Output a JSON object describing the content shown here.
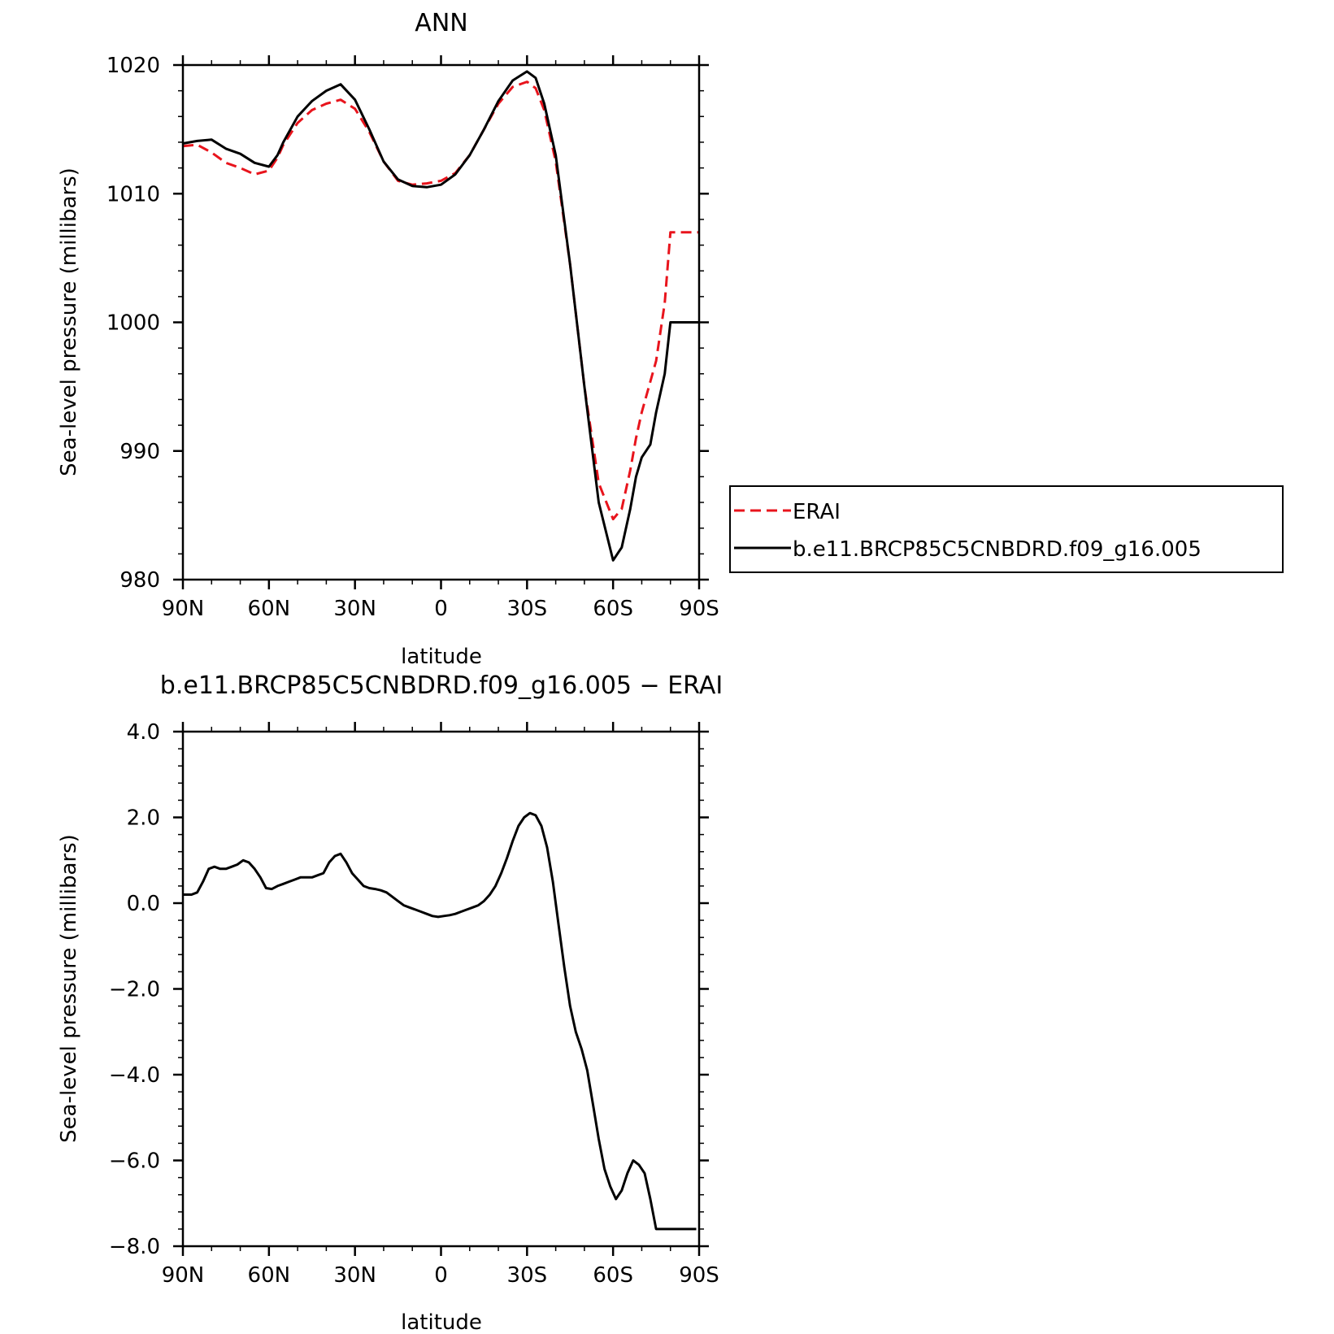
{
  "chart_data": [
    {
      "type": "line",
      "title": "ANN",
      "xlabel": "latitude",
      "ylabel": "Sea-level pressure (millibars)",
      "xlim": [
        90,
        -90
      ],
      "ylim": [
        980,
        1020
      ],
      "x_ticks": [
        {
          "value": 90,
          "label": "90N"
        },
        {
          "value": 60,
          "label": "60N"
        },
        {
          "value": 30,
          "label": "30N"
        },
        {
          "value": 0,
          "label": "0"
        },
        {
          "value": -30,
          "label": "30S"
        },
        {
          "value": -60,
          "label": "60S"
        },
        {
          "value": -90,
          "label": "90S"
        }
      ],
      "y_ticks": [
        {
          "value": 1020,
          "label": "1020"
        },
        {
          "value": 1010,
          "label": "1010"
        },
        {
          "value": 1000,
          "label": "1000"
        },
        {
          "value": 990,
          "label": "990"
        },
        {
          "value": 980,
          "label": "980"
        }
      ],
      "legend": "right",
      "series": [
        {
          "name": "ERAI",
          "color": "#e8141c",
          "dash": "dashed",
          "x": [
            90,
            85,
            80,
            75,
            70,
            65,
            60,
            57,
            55,
            50,
            45,
            40,
            35,
            30,
            25,
            20,
            15,
            10,
            5,
            0,
            -5,
            -10,
            -15,
            -20,
            -25,
            -30,
            -33,
            -36,
            -40,
            -45,
            -50,
            -55,
            -60,
            -63,
            -66,
            -68,
            -70,
            -75,
            -78,
            -80,
            -85,
            -90
          ],
          "y": [
            1013.7,
            1013.8,
            1013.2,
            1012.4,
            1012.0,
            1011.5,
            1011.8,
            1012.8,
            1013.8,
            1015.5,
            1016.5,
            1017.0,
            1017.3,
            1016.6,
            1014.8,
            1012.5,
            1011.0,
            1010.7,
            1010.8,
            1011.0,
            1011.6,
            1013.0,
            1015.0,
            1017.0,
            1018.3,
            1018.7,
            1018.2,
            1016.5,
            1012.5,
            1004.5,
            995.0,
            987.5,
            984.7,
            985.5,
            988.5,
            991.0,
            993.0,
            997.0,
            1001.5,
            1007.0,
            1007.0,
            1007.0
          ]
        },
        {
          "name": "b.e11.BRCP85C5CNBDRD.f09_g16.005",
          "color": "#000000",
          "dash": "solid",
          "x": [
            90,
            85,
            80,
            75,
            70,
            65,
            60,
            57,
            55,
            50,
            45,
            40,
            35,
            30,
            25,
            20,
            15,
            10,
            5,
            0,
            -5,
            -10,
            -15,
            -20,
            -25,
            -30,
            -33,
            -36,
            -40,
            -45,
            -50,
            -55,
            -60,
            -63,
            -66,
            -68,
            -70,
            -73,
            -75,
            -78,
            -80,
            -85,
            -90
          ],
          "y": [
            1013.9,
            1014.1,
            1014.2,
            1013.5,
            1013.1,
            1012.4,
            1012.1,
            1013.0,
            1014.0,
            1016.0,
            1017.2,
            1018.0,
            1018.5,
            1017.3,
            1015.0,
            1012.5,
            1011.1,
            1010.6,
            1010.5,
            1010.7,
            1011.5,
            1013.0,
            1015.0,
            1017.2,
            1018.8,
            1019.5,
            1019.0,
            1017.0,
            1013.0,
            1004.5,
            995.0,
            986.0,
            981.5,
            982.5,
            985.5,
            988.0,
            989.5,
            990.5,
            993.0,
            996.0,
            1000.0,
            1000.0,
            1000.0
          ]
        }
      ]
    },
    {
      "type": "line",
      "title": "b.e11.BRCP85C5CNBDRD.f09_g16.005 − ERAI",
      "xlabel": "latitude",
      "ylabel": "Sea-level pressure (millibars)",
      "xlim": [
        90,
        -90
      ],
      "ylim": [
        -8,
        4
      ],
      "x_ticks": [
        {
          "value": 90,
          "label": "90N"
        },
        {
          "value": 60,
          "label": "60N"
        },
        {
          "value": 30,
          "label": "30N"
        },
        {
          "value": 0,
          "label": "0"
        },
        {
          "value": -30,
          "label": "30S"
        },
        {
          "value": -60,
          "label": "60S"
        },
        {
          "value": -90,
          "label": "90S"
        }
      ],
      "y_ticks": [
        {
          "value": 4,
          "label": "4.0"
        },
        {
          "value": 2,
          "label": "2.0"
        },
        {
          "value": 0,
          "label": "0.0"
        },
        {
          "value": -2,
          "label": "−2.0"
        },
        {
          "value": -4,
          "label": "−4.0"
        },
        {
          "value": -6,
          "label": "−6.0"
        },
        {
          "value": -8,
          "label": "−8.0"
        }
      ],
      "series": [
        {
          "color": "#000000",
          "dash": "solid",
          "x": [
            90,
            87,
            85,
            83,
            81,
            79,
            77,
            75,
            73,
            71,
            69,
            67,
            65,
            63,
            61,
            59,
            57,
            55,
            53,
            51,
            49,
            47,
            45,
            43,
            41,
            39,
            37,
            35,
            33,
            31,
            29,
            27,
            25,
            23,
            21,
            19,
            17,
            15,
            13,
            11,
            9,
            7,
            5,
            3,
            1,
            -1,
            -3,
            -5,
            -7,
            -9,
            -11,
            -13,
            -15,
            -17,
            -19,
            -21,
            -23,
            -25,
            -27,
            -29,
            -31,
            -33,
            -35,
            -37,
            -39,
            -41,
            -43,
            -45,
            -47,
            -49,
            -51,
            -53,
            -55,
            -57,
            -59,
            -61,
            -63,
            -65,
            -67,
            -69,
            -71,
            -73,
            -75,
            -77,
            -79,
            -81,
            -83,
            -85,
            -87,
            -89
          ],
          "y": [
            0.2,
            0.2,
            0.25,
            0.5,
            0.8,
            0.85,
            0.8,
            0.8,
            0.85,
            0.9,
            1.0,
            0.95,
            0.8,
            0.6,
            0.35,
            0.33,
            0.4,
            0.45,
            0.5,
            0.55,
            0.6,
            0.6,
            0.6,
            0.65,
            0.7,
            0.95,
            1.1,
            1.15,
            0.95,
            0.7,
            0.55,
            0.4,
            0.35,
            0.33,
            0.3,
            0.25,
            0.15,
            0.05,
            -0.05,
            -0.1,
            -0.15,
            -0.2,
            -0.25,
            -0.3,
            -0.32,
            -0.3,
            -0.28,
            -0.25,
            -0.2,
            -0.15,
            -0.1,
            -0.05,
            0.05,
            0.2,
            0.4,
            0.7,
            1.05,
            1.45,
            1.8,
            2.0,
            2.1,
            2.05,
            1.8,
            1.3,
            0.5,
            -0.5,
            -1.5,
            -2.4,
            -3.0,
            -3.4,
            -3.9,
            -4.7,
            -5.5,
            -6.2,
            -6.6,
            -6.9,
            -6.7,
            -6.3,
            -6.0,
            -6.1,
            -6.3,
            -6.9,
            -7.6,
            -7.6,
            -7.6,
            -7.6,
            -7.6,
            -7.6,
            -7.6,
            -7.6
          ]
        }
      ]
    }
  ]
}
